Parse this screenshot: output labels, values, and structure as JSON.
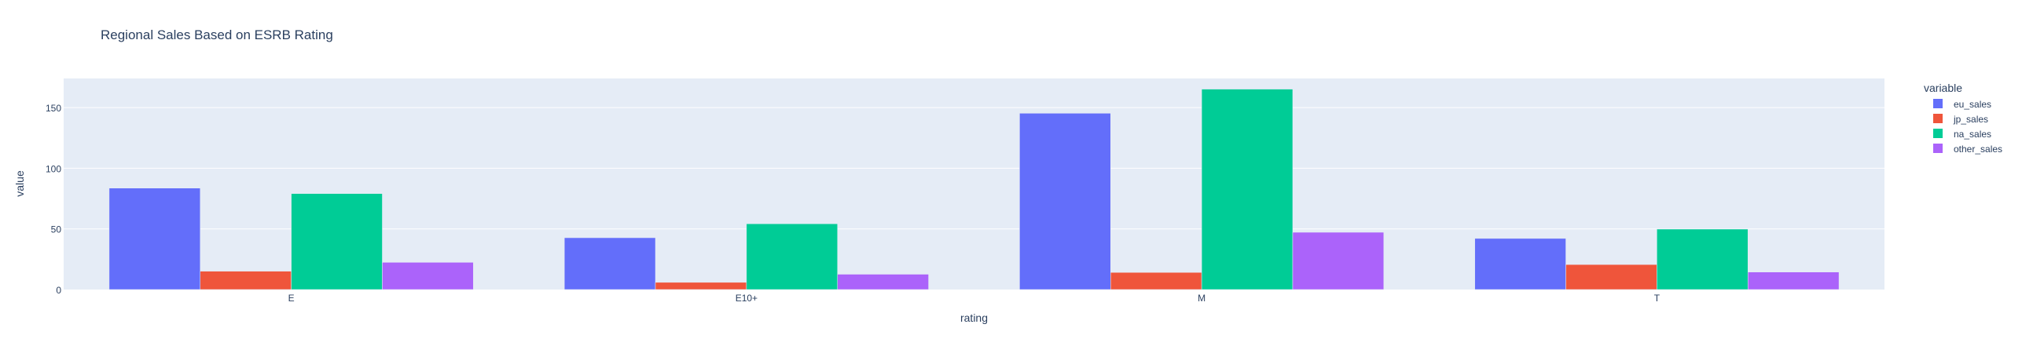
{
  "chart_data": {
    "type": "bar",
    "barmode": "group",
    "title": "Regional Sales Based on ESRB Rating",
    "xlabel": "rating",
    "ylabel": "value",
    "categories": [
      "E",
      "E10+",
      "M",
      "T"
    ],
    "series": [
      {
        "name": "eu_sales",
        "color": "#636efa",
        "values": [
          83.6,
          42.7,
          145.3,
          42.1
        ]
      },
      {
        "name": "jp_sales",
        "color": "#ef553b",
        "values": [
          15.1,
          5.9,
          14.1,
          20.6
        ]
      },
      {
        "name": "na_sales",
        "color": "#00cc96",
        "values": [
          79.1,
          54.2,
          165.2,
          49.8
        ]
      },
      {
        "name": "other_sales",
        "color": "#ab63fa",
        "values": [
          22.4,
          12.6,
          47.2,
          14.4
        ]
      }
    ],
    "yticks": [
      0,
      50,
      100,
      150
    ],
    "ylim": [
      0,
      174
    ],
    "legend_title": "variable",
    "legend_position": "right",
    "grid": true,
    "plot_bgcolor": "#e5ecf6"
  }
}
